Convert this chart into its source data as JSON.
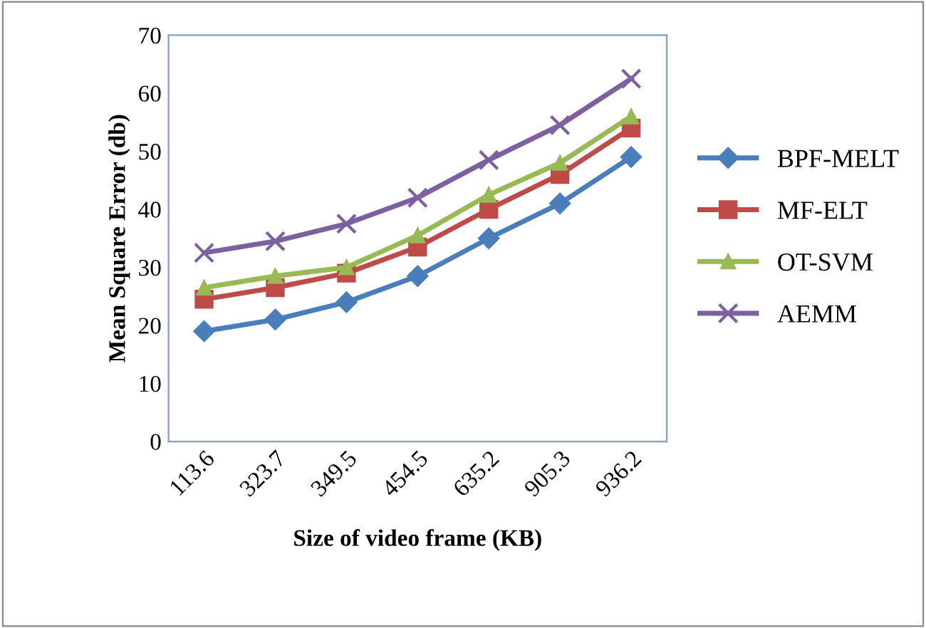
{
  "chart_data": {
    "type": "line",
    "xlabel": "Size of video frame (KB)",
    "ylabel": "Mean Square Error (db)",
    "categories": [
      "113.6",
      "323.7",
      "349.5",
      "454.5",
      "635.2",
      "905.3",
      "936.2"
    ],
    "ylim": [
      0,
      70
    ],
    "yticks": [
      0,
      10,
      20,
      30,
      40,
      50,
      60,
      70
    ],
    "grid": false,
    "legend": "right",
    "series": [
      {
        "name": "BPF-MELT",
        "color": "#4a7ebb",
        "marker": "diamond",
        "values": [
          19,
          21,
          24,
          28.5,
          35,
          41,
          49
        ]
      },
      {
        "name": "MF-ELT",
        "color": "#be4b48",
        "marker": "square",
        "values": [
          24.5,
          26.5,
          29,
          33.5,
          40,
          46,
          54
        ]
      },
      {
        "name": "OT-SVM",
        "color": "#98b954",
        "marker": "triangle",
        "values": [
          26.5,
          28.5,
          30,
          35.5,
          42.5,
          48,
          56
        ]
      },
      {
        "name": "AEMM",
        "color": "#7d60a0",
        "marker": "cross",
        "values": [
          32.5,
          34.5,
          37.5,
          42,
          48.5,
          54.5,
          62.5
        ]
      }
    ]
  }
}
